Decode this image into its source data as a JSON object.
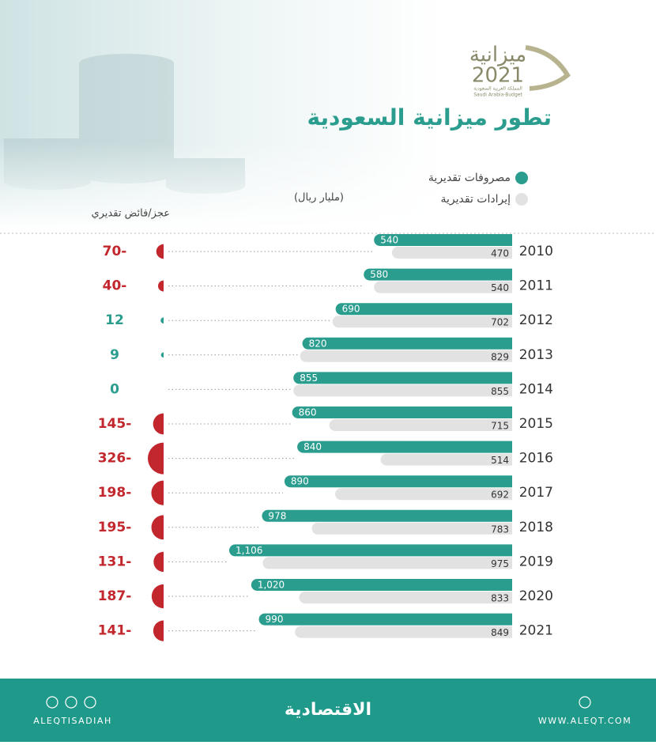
{
  "logo": {
    "title": "ميزانية",
    "year": "2021",
    "subtitle_ar": "المملكة العربية السعودية",
    "subtitle_en": "Saudi Arabia-Budget"
  },
  "chart_data": {
    "type": "bar",
    "title": "تطور ميزانية السعودية",
    "unit_label": "(مليار ريال)",
    "balance_label": "عجز/فائض تقديري",
    "categories": [
      "2010",
      "2011",
      "2012",
      "2013",
      "2014",
      "2015",
      "2016",
      "2017",
      "2018",
      "2019",
      "2020",
      "2021"
    ],
    "series": [
      {
        "name": "مصروفات تقديرية",
        "color": "#2a9d8f",
        "values": [
          540,
          580,
          690,
          820,
          855,
          860,
          840,
          890,
          978,
          1106,
          1020,
          990
        ],
        "value_labels": [
          "540",
          "580",
          "690",
          "820",
          "855",
          "860",
          "840",
          "890",
          "978",
          "1,106",
          "1,020",
          "990"
        ]
      },
      {
        "name": "إيرادات تقديرية",
        "color": "#e2e2e2",
        "values": [
          470,
          540,
          702,
          829,
          855,
          715,
          514,
          692,
          783,
          975,
          833,
          849
        ],
        "value_labels": [
          "470",
          "540",
          "702",
          "829",
          "855",
          "715",
          "514",
          "692",
          "783",
          "975",
          "833",
          "849"
        ]
      }
    ],
    "balance": {
      "negative_color": "#c1272d",
      "positive_color": "#2a9d8f",
      "values": [
        -70,
        -40,
        12,
        9,
        0,
        -145,
        -326,
        -198,
        -195,
        -131,
        -187,
        -141
      ],
      "value_labels": [
        "70-",
        "40-",
        "12",
        "9",
        "0",
        "145-",
        "326-",
        "198-",
        "195-",
        "131-",
        "187-",
        "141-"
      ]
    }
  },
  "footer": {
    "brand": "الاقتصادية",
    "handle": "ALEQTISADIAH",
    "website": "WWW.ALEQT.COM"
  }
}
